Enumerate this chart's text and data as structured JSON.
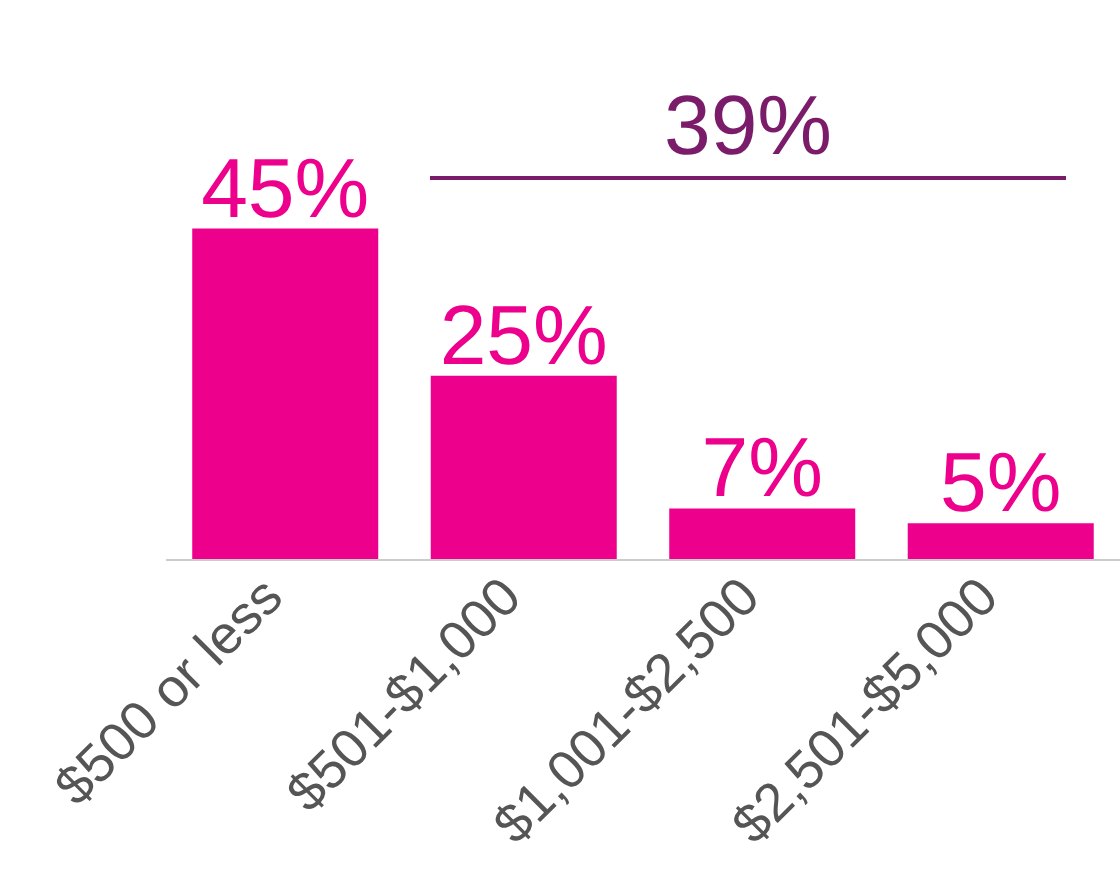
{
  "chart_data": {
    "type": "bar",
    "categories": [
      "$500 or less",
      "$501-$1,000",
      "$1,001-$2,500",
      "$2,501-$5,000"
    ],
    "values": [
      45,
      25,
      7,
      5
    ],
    "value_labels": [
      "45%",
      "25%",
      "7%",
      "5%"
    ],
    "color": "#ec008c",
    "tick_labels": "x",
    "annotations": [
      "39%"
    ]
  }
}
